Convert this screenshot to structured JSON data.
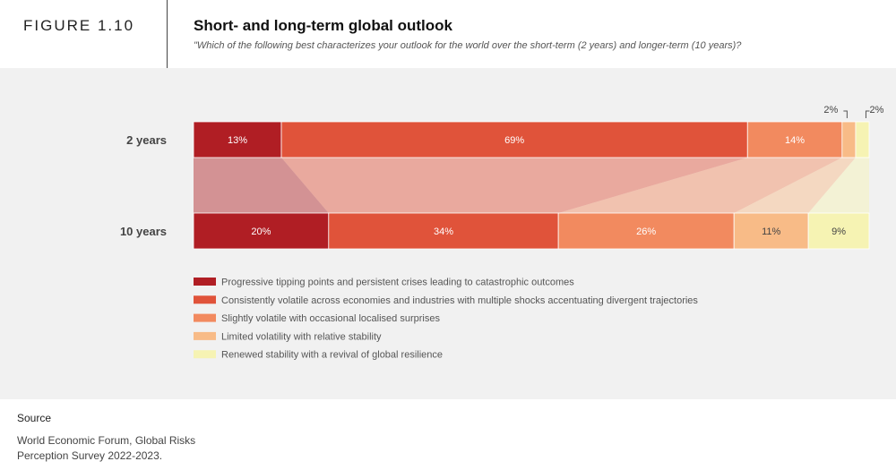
{
  "figure_label": "FIGURE 1.10",
  "title": "Short- and long-term global outlook",
  "subtitle": "\"Which of the following best characterizes your outlook for the world over the short-term (2 years) and longer-term (10 years)?",
  "source": {
    "heading": "Source",
    "text": "World Economic Forum, Global Risks Perception Survey 2022-2023."
  },
  "colors": {
    "Progressive tipping points and persistent crises leading to catastrophic outcomes": "#b01e24",
    "Consistently volatile across economies and industries with multiple shocks accentuating divergent trajectories": "#e0533a",
    "Slightly volatile with occasional localised surprises": "#f28a5f",
    "Limited volatility with relative stability": "#f8bb87",
    "Renewed stability with a revival of global resilience": "#f6f3b3"
  },
  "chart_data": {
    "type": "bar",
    "orientation": "horizontal",
    "stacked": true,
    "percent_stacked": true,
    "categories": [
      "2 years",
      "10 years"
    ],
    "series": [
      {
        "name": "Progressive tipping points and persistent crises leading to catastrophic outcomes",
        "values": [
          13,
          20
        ],
        "labels": [
          "13%",
          "20%"
        ]
      },
      {
        "name": "Consistently volatile across economies and industries with multiple shocks accentuating divergent trajectories",
        "values": [
          69,
          34
        ],
        "labels": [
          "69%",
          "34%"
        ]
      },
      {
        "name": "Slightly volatile with occasional localised surprises",
        "values": [
          14,
          26
        ],
        "labels": [
          "14%",
          "26%"
        ]
      },
      {
        "name": "Limited volatility with relative stability",
        "values": [
          2,
          11
        ],
        "labels": [
          "2%",
          "11%"
        ]
      },
      {
        "name": "Renewed stability with a revival of global resilience",
        "values": [
          2,
          9
        ],
        "labels": [
          "2%",
          "9%"
        ]
      }
    ],
    "legend_position": "bottom",
    "grid": false
  }
}
